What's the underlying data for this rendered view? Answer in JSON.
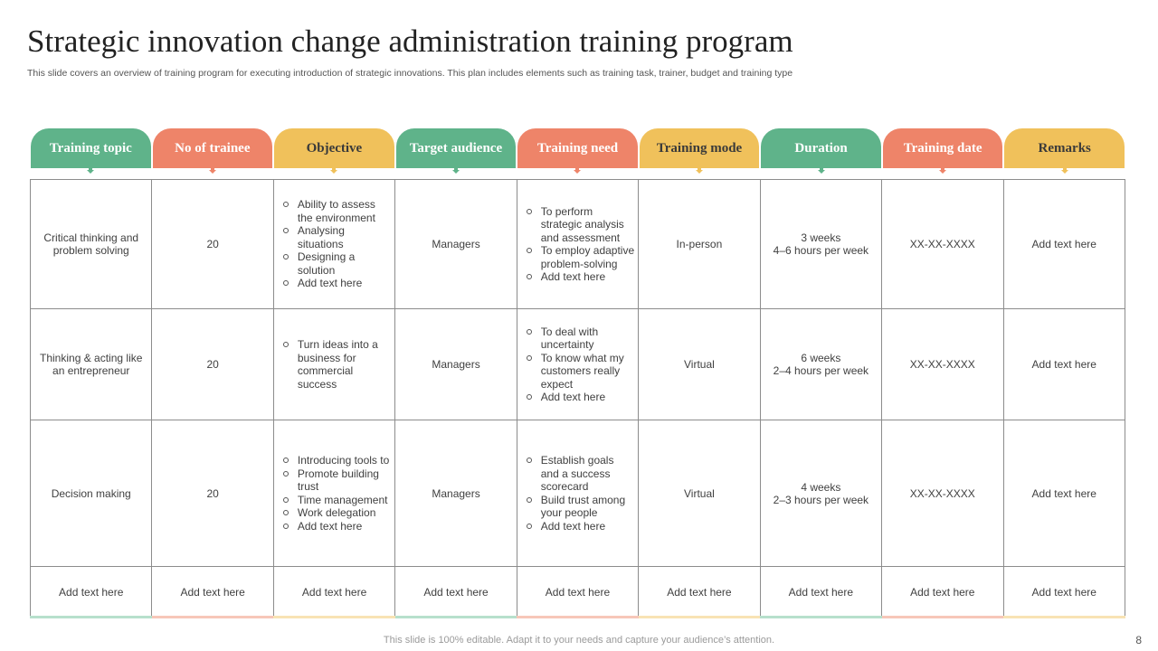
{
  "title": "Strategic innovation change administration training program",
  "subtitle": "This slide covers an overview  of training program for executing introduction of strategic innovations. This plan includes elements such as training task, trainer, budget and training type",
  "colors": {
    "green": "#5fb38a",
    "orange": "#ee8469",
    "yellow": "#f0c15b",
    "border": "#8c8c8c"
  },
  "headers": [
    {
      "label": "Training topic",
      "color": "green"
    },
    {
      "label": "No of trainee",
      "color": "orange"
    },
    {
      "label": "Objective",
      "color": "yellow"
    },
    {
      "label": "Target audience",
      "color": "green"
    },
    {
      "label": "Training need",
      "color": "orange"
    },
    {
      "label": "Training mode",
      "color": "yellow"
    },
    {
      "label": "Duration",
      "color": "green"
    },
    {
      "label": "Training date",
      "color": "orange"
    },
    {
      "label": "Remarks",
      "color": "yellow"
    }
  ],
  "rows": [
    {
      "topic": "Critical thinking and problem solving",
      "trainees": "20",
      "objectives": [
        "Ability to assess the environment",
        "Analysing situations",
        "Designing a solution",
        "Add text here"
      ],
      "audience": "Managers",
      "needs": [
        "To perform strategic analysis and assessment",
        "To employ adaptive problem-solving",
        "Add text here"
      ],
      "mode": "In-person",
      "duration_line1": "3 weeks",
      "duration_line2": "4–6 hours per week",
      "date": "XX-XX-XXXX",
      "remarks": "Add text here"
    },
    {
      "topic": "Thinking & acting like an entrepreneur",
      "trainees": "20",
      "objectives": [
        "Turn ideas into a business for commercial success"
      ],
      "audience": "Managers",
      "needs": [
        "To deal with uncertainty",
        "To know what my customers really expect",
        "Add text here"
      ],
      "mode": "Virtual",
      "duration_line1": "6 weeks",
      "duration_line2": "2–4 hours per week",
      "date": "XX-XX-XXXX",
      "remarks": "Add text here"
    },
    {
      "topic": "Decision making",
      "trainees": "20",
      "objectives": [
        "Introducing tools to",
        "Promote building trust",
        "Time management",
        "Work delegation",
        "Add text here"
      ],
      "audience": "Managers",
      "needs": [
        "Establish goals and a success scorecard",
        "Build trust among your people",
        "Add text here"
      ],
      "mode": "Virtual",
      "duration_line1": "4 weeks",
      "duration_line2": "2–3 hours per week",
      "date": "XX-XX-XXXX",
      "remarks": "Add text here"
    }
  ],
  "placeholder_row": [
    "Add text here",
    "Add text here",
    "Add text here",
    "Add text here",
    "Add text here",
    "Add text here",
    "Add text here",
    "Add text here",
    "Add text here"
  ],
  "footer": "This slide is 100% editable. Adapt it to your needs and capture your audience’s attention.",
  "page_number": "8"
}
